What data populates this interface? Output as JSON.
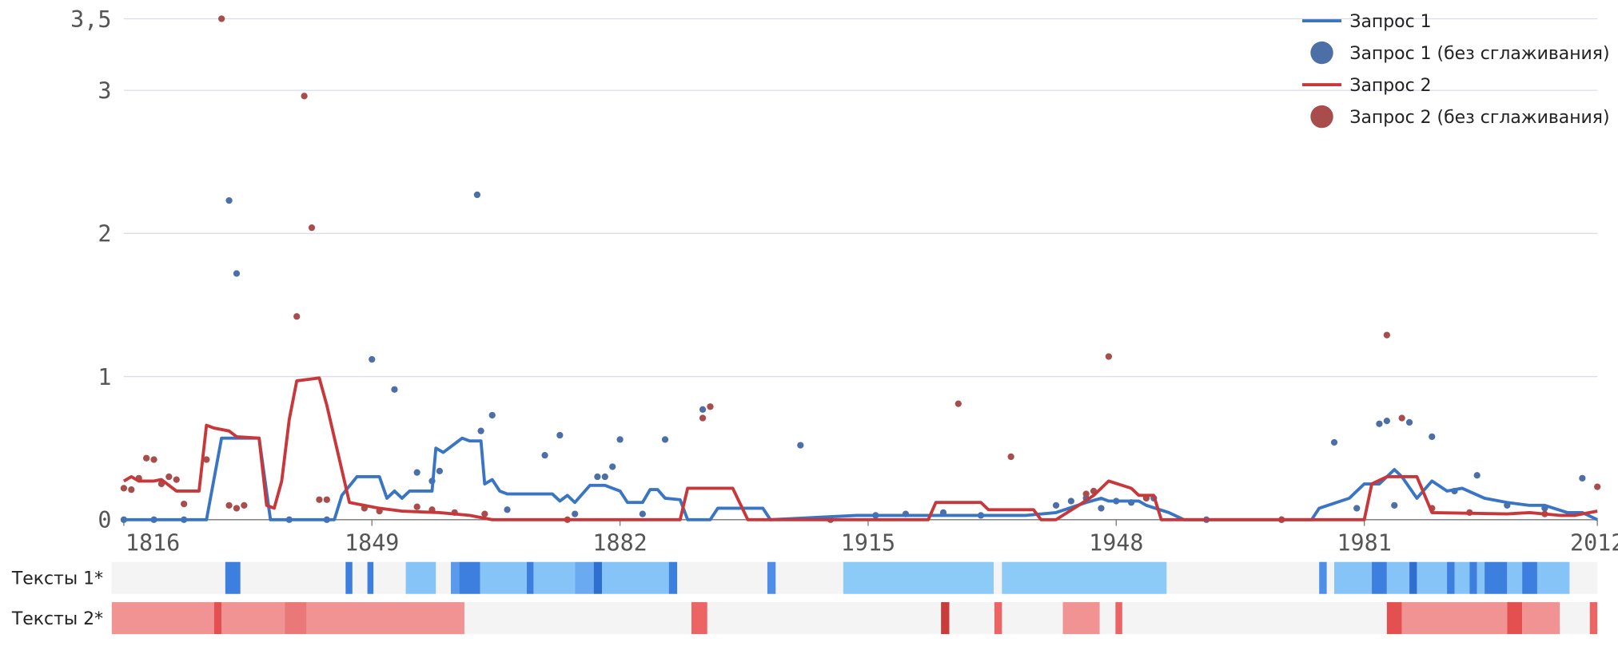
{
  "chart_data": {
    "type": "line",
    "xlim": [
      1816,
      2012
    ],
    "xticks": [
      1816,
      1849,
      1882,
      1915,
      1948,
      1981,
      2012
    ],
    "ylim": [
      0,
      3.5
    ],
    "yticks": [
      0,
      1,
      2,
      3,
      {
        "value": 3.5,
        "label": "3,5"
      }
    ],
    "grid": true,
    "legend": "top-right",
    "series": [
      {
        "name": "Запрос 1",
        "type": "line",
        "color": "#3a75c4",
        "x": [
          1816,
          1827,
          1829,
          1834,
          1835.5,
          1844,
          1845,
          1847,
          1850,
          1851,
          1852,
          1853,
          1854,
          1857,
          1857.5,
          1858.5,
          1860,
          1861,
          1862,
          1863.5,
          1864,
          1865,
          1866,
          1867,
          1873,
          1874,
          1875,
          1876,
          1877,
          1878,
          1880,
          1882,
          1883,
          1885,
          1886,
          1887,
          1888,
          1890,
          1891,
          1894,
          1895,
          1901,
          1902,
          1913.5,
          1936,
          1940,
          1944,
          1946,
          1947,
          1951,
          1952,
          1955,
          1957,
          1974,
          1975,
          1979,
          1981,
          1983,
          1985,
          1986,
          1988,
          1990,
          1992,
          1994,
          1997,
          2000,
          2003,
          2005,
          2008,
          2010,
          2012
        ],
        "values": [
          0,
          0,
          0.57,
          0.57,
          0,
          0,
          0.17,
          0.3,
          0.3,
          0.15,
          0.2,
          0.15,
          0.2,
          0.2,
          0.5,
          0.47,
          0.53,
          0.57,
          0.55,
          0.55,
          0.25,
          0.28,
          0.2,
          0.18,
          0.18,
          0.13,
          0.17,
          0.12,
          0.18,
          0.24,
          0.24,
          0.2,
          0.12,
          0.12,
          0.21,
          0.21,
          0.15,
          0.14,
          0,
          0,
          0.08,
          0.08,
          0,
          0.03,
          0.03,
          0.05,
          0.12,
          0.15,
          0.13,
          0.13,
          0.1,
          0.05,
          0,
          0,
          0.08,
          0.15,
          0.25,
          0.25,
          0.35,
          0.3,
          0.15,
          0.27,
          0.2,
          0.22,
          0.15,
          0.12,
          0.1,
          0.1,
          0.05,
          0.05,
          0
        ]
      },
      {
        "name": "Запрос 1 (без сглаживания)",
        "type": "scatter",
        "color": "#4c6fa8",
        "x": [
          1816,
          1820,
          1824,
          1830,
          1831,
          1838,
          1843,
          1849,
          1852,
          1855,
          1857,
          1858,
          1863,
          1863.5,
          1865,
          1867,
          1872,
          1874,
          1876,
          1879,
          1880,
          1881,
          1882,
          1885,
          1888,
          1893,
          1906,
          1916,
          1920,
          1925,
          1930,
          1940,
          1942,
          1944,
          1946,
          1948,
          1950,
          1953,
          1960,
          1970,
          1977,
          1980,
          1983,
          1984,
          1985,
          1987,
          1990,
          1993,
          1996,
          2000,
          2005,
          2010
        ],
        "values": [
          0,
          0,
          0,
          2.23,
          1.72,
          0,
          0,
          1.12,
          0.91,
          0.33,
          0.27,
          0.34,
          2.27,
          0.62,
          0.73,
          0.07,
          0.45,
          0.59,
          0.04,
          0.3,
          0.3,
          0.37,
          0.56,
          0.04,
          0.56,
          0.77,
          0.52,
          0.03,
          0.04,
          0.05,
          0.03,
          0.1,
          0.13,
          0.15,
          0.08,
          0.13,
          0.12,
          0.15,
          0,
          0,
          0.54,
          0.08,
          0.67,
          0.69,
          0.1,
          0.68,
          0.58,
          0.2,
          0.31,
          0.1,
          0.08,
          0.29
        ]
      },
      {
        "name": "Запрос 2",
        "type": "line",
        "color": "#c8383a",
        "x": [
          1816,
          1817,
          1818,
          1820,
          1821,
          1823,
          1826,
          1827,
          1828,
          1830,
          1831,
          1834,
          1835,
          1836,
          1837,
          1838,
          1839,
          1842,
          1843,
          1846,
          1848,
          1850,
          1853,
          1858,
          1862,
          1865,
          1890,
          1891,
          1897,
          1899,
          1923,
          1924,
          1930,
          1931,
          1937,
          1938,
          1940,
          1943,
          1945,
          1947,
          1950,
          1951,
          1953,
          1954,
          1981,
          1982,
          1984,
          1988,
          1990,
          2000,
          2003,
          2007,
          2009,
          2012
        ],
        "values": [
          0.27,
          0.3,
          0.27,
          0.27,
          0.28,
          0.2,
          0.2,
          0.66,
          0.64,
          0.62,
          0.58,
          0.57,
          0.1,
          0.08,
          0.27,
          0.7,
          0.97,
          0.99,
          0.8,
          0.12,
          0.1,
          0.08,
          0.06,
          0.05,
          0.03,
          0,
          0,
          0.22,
          0.22,
          0,
          0,
          0.12,
          0.12,
          0.07,
          0.07,
          0,
          0,
          0.1,
          0.17,
          0.27,
          0.22,
          0.17,
          0.17,
          0,
          0,
          0.25,
          0.3,
          0.3,
          0.05,
          0.04,
          0.05,
          0.03,
          0.03,
          0.06
        ]
      },
      {
        "name": "Запрос 2 (без сглаживания)",
        "type": "scatter",
        "color": "#a84c4c",
        "x": [
          1816,
          1817,
          1818,
          1819,
          1820,
          1821,
          1822,
          1823,
          1824,
          1827,
          1829,
          1830,
          1831,
          1832,
          1839,
          1840,
          1841,
          1842,
          1843,
          1848,
          1850,
          1855,
          1857,
          1860,
          1864,
          1875,
          1893,
          1894,
          1910,
          1927,
          1934,
          1944,
          1945,
          1947,
          1952,
          1970,
          1984,
          1986,
          1990,
          1995,
          2005,
          2012
        ],
        "values": [
          0.22,
          0.21,
          0.29,
          0.43,
          0.42,
          0.25,
          0.3,
          0.28,
          0.11,
          0.42,
          3.5,
          0.1,
          0.08,
          0.1,
          1.42,
          2.96,
          2.04,
          0.14,
          0.14,
          0.08,
          0.06,
          0.09,
          0.07,
          0.05,
          0.04,
          0,
          0.71,
          0.79,
          0,
          0.81,
          0.44,
          0.18,
          0.2,
          1.14,
          0.15,
          0,
          1.29,
          0.71,
          0.08,
          0.05,
          0.04,
          0.23
        ]
      }
    ],
    "strips": [
      {
        "label": "Тексты 1*",
        "ranges": [
          {
            "start": 1829.5,
            "end": 1831.5,
            "color": "#3c7fde"
          },
          {
            "start": 1845.5,
            "end": 1846.4,
            "color": "#3c7fde"
          },
          {
            "start": 1848.4,
            "end": 1849.2,
            "color": "#3c7fde"
          },
          {
            "start": 1853.5,
            "end": 1857.5,
            "color": "#86c4f7"
          },
          {
            "start": 1859.5,
            "end": 1860.6,
            "color": "#5a9aea"
          },
          {
            "start": 1860.6,
            "end": 1863.4,
            "color": "#3c7fde"
          },
          {
            "start": 1863.4,
            "end": 1869.6,
            "color": "#86c4f7"
          },
          {
            "start": 1869.6,
            "end": 1870.5,
            "color": "#3c7fde"
          },
          {
            "start": 1870.5,
            "end": 1876,
            "color": "#86c4f7"
          },
          {
            "start": 1876,
            "end": 1878.5,
            "color": "#6aaaf0"
          },
          {
            "start": 1878.5,
            "end": 1879.6,
            "color": "#2f6fd0"
          },
          {
            "start": 1879.6,
            "end": 1888.5,
            "color": "#86c4f7"
          },
          {
            "start": 1888.5,
            "end": 1889.6,
            "color": "#3c7fde"
          },
          {
            "start": 1901.6,
            "end": 1902.7,
            "color": "#4f8ee6"
          },
          {
            "start": 1911.7,
            "end": 1931.7,
            "color": "#8ccaf8"
          },
          {
            "start": 1932.8,
            "end": 1954.7,
            "color": "#8ccaf8"
          },
          {
            "start": 1975,
            "end": 1976,
            "color": "#4f8ee6"
          },
          {
            "start": 1977,
            "end": 1982,
            "color": "#86c4f7"
          },
          {
            "start": 1982,
            "end": 1984,
            "color": "#3c7fde"
          },
          {
            "start": 1984,
            "end": 1987,
            "color": "#86c4f7"
          },
          {
            "start": 1987,
            "end": 1988,
            "color": "#2f6fd0"
          },
          {
            "start": 1988,
            "end": 1992,
            "color": "#86c4f7"
          },
          {
            "start": 1992,
            "end": 1993,
            "color": "#3c7fde"
          },
          {
            "start": 1993,
            "end": 1995,
            "color": "#86c4f7"
          },
          {
            "start": 1995,
            "end": 1996,
            "color": "#3c7fde"
          },
          {
            "start": 1996,
            "end": 1997,
            "color": "#86c4f7"
          },
          {
            "start": 1997,
            "end": 2000,
            "color": "#3c7fde"
          },
          {
            "start": 2000,
            "end": 2002,
            "color": "#86c4f7"
          },
          {
            "start": 2002,
            "end": 2004,
            "color": "#3c7fde"
          },
          {
            "start": 2004,
            "end": 2008.3,
            "color": "#86c4f7"
          }
        ]
      },
      {
        "label": "Тексты 2*",
        "ranges": [
          {
            "start": 1814.4,
            "end": 1828,
            "color": "#f19393"
          },
          {
            "start": 1828,
            "end": 1829,
            "color": "#e45050"
          },
          {
            "start": 1829,
            "end": 1837.4,
            "color": "#f19393"
          },
          {
            "start": 1837.4,
            "end": 1840.3,
            "color": "#ea7878"
          },
          {
            "start": 1840.3,
            "end": 1861.3,
            "color": "#f19393"
          },
          {
            "start": 1891.5,
            "end": 1893.6,
            "color": "#ec6464"
          },
          {
            "start": 1924.7,
            "end": 1925.8,
            "color": "#c83c3c"
          },
          {
            "start": 1931.8,
            "end": 1932.8,
            "color": "#ec6464"
          },
          {
            "start": 1940.9,
            "end": 1945.8,
            "color": "#f19393"
          },
          {
            "start": 1947.9,
            "end": 1948.8,
            "color": "#ec6464"
          },
          {
            "start": 1984,
            "end": 1986,
            "color": "#e45050"
          },
          {
            "start": 1986,
            "end": 2000,
            "color": "#f19393"
          },
          {
            "start": 2000,
            "end": 2002,
            "color": "#e45050"
          },
          {
            "start": 2002,
            "end": 2007,
            "color": "#f19393"
          },
          {
            "start": 2011,
            "end": 2012,
            "color": "#ec6464"
          }
        ]
      }
    ]
  }
}
